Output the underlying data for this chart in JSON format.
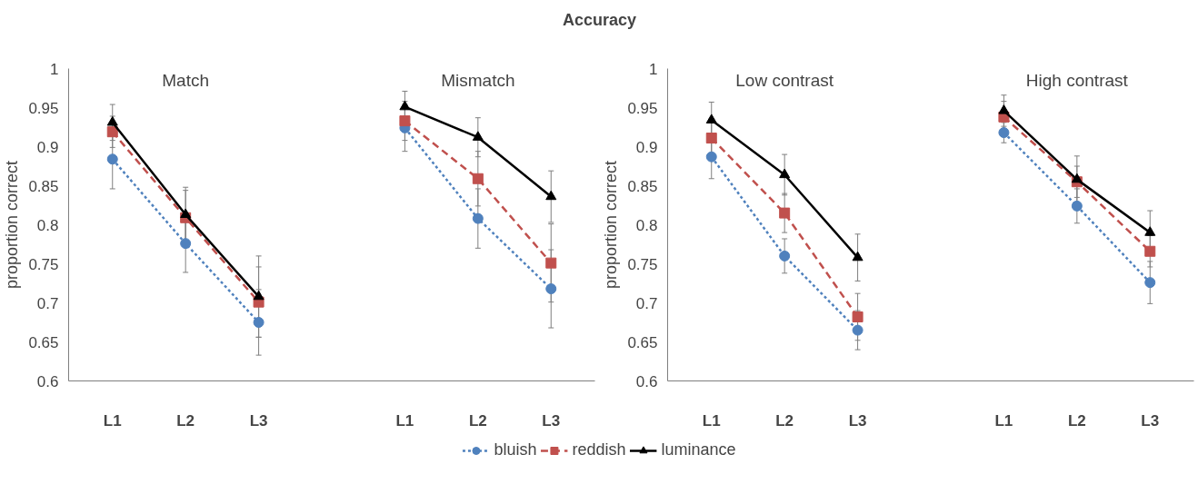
{
  "chart_data": [
    {
      "type": "line",
      "title": "Accuracy",
      "ylabel": "proportion correct",
      "categories": [
        "L1",
        "L2",
        "L3",
        null,
        "L1",
        "L2",
        "L3"
      ],
      "annotations": [
        "Match",
        "Mismatch"
      ],
      "ylim": [
        0.6,
        1
      ],
      "yticks": [
        0.6,
        0.65,
        0.7,
        0.75,
        0.8,
        0.85,
        0.9,
        0.95,
        1
      ],
      "grid": false,
      "legend": "bottom",
      "series": [
        {
          "name": "bluish",
          "color": "#4f81bd",
          "marker": "circle",
          "line_style": "dotted",
          "values": [
            0.884,
            0.776,
            0.675,
            null,
            0.924,
            0.808,
            0.718
          ],
          "errors": [
            0.038,
            0.037,
            0.042,
            null,
            0.03,
            0.038,
            0.05
          ]
        },
        {
          "name": "reddish",
          "color": "#c0504d",
          "marker": "square",
          "line_style": "dashed",
          "values": [
            0.919,
            0.809,
            0.701,
            null,
            0.933,
            0.859,
            0.751
          ],
          "errors": [
            0.02,
            0.035,
            0.045,
            null,
            0.025,
            0.035,
            0.05
          ]
        },
        {
          "name": "luminance",
          "color": "#000000",
          "marker": "triangle",
          "line_style": "solid",
          "values": [
            0.931,
            0.813,
            0.708,
            null,
            0.951,
            0.912,
            0.836
          ],
          "errors": [
            0.023,
            0.035,
            0.052,
            null,
            0.02,
            0.025,
            0.033
          ]
        }
      ]
    },
    {
      "type": "line",
      "ylabel": "proportion correct",
      "categories": [
        "L1",
        "L2",
        "L3",
        null,
        "L1",
        "L2",
        "L3"
      ],
      "annotations": [
        "Low contrast",
        "High contrast"
      ],
      "ylim": [
        0.6,
        1
      ],
      "yticks": [
        0.6,
        0.65,
        0.7,
        0.75,
        0.8,
        0.85,
        0.9,
        0.95,
        1
      ],
      "grid": false,
      "series": [
        {
          "color": "#4f81bd",
          "marker": "circle",
          "line_style": "dotted",
          "values": [
            0.887,
            0.76,
            0.665,
            null,
            0.918,
            0.824,
            0.726
          ],
          "errors": [
            0.028,
            0.022,
            0.025,
            null,
            0.013,
            0.022,
            0.027
          ]
        },
        {
          "color": "#c0504d",
          "marker": "square",
          "line_style": "dashed",
          "values": [
            0.911,
            0.815,
            0.682,
            null,
            0.938,
            0.855,
            0.766
          ],
          "errors": [
            0.025,
            0.025,
            0.03,
            null,
            0.02,
            0.02,
            0.02
          ]
        },
        {
          "color": "#000000",
          "marker": "triangle",
          "line_style": "solid",
          "values": [
            0.934,
            0.864,
            0.758,
            null,
            0.946,
            0.858,
            0.79
          ],
          "errors": [
            0.023,
            0.026,
            0.03,
            null,
            0.02,
            0.03,
            0.028
          ]
        }
      ]
    }
  ]
}
